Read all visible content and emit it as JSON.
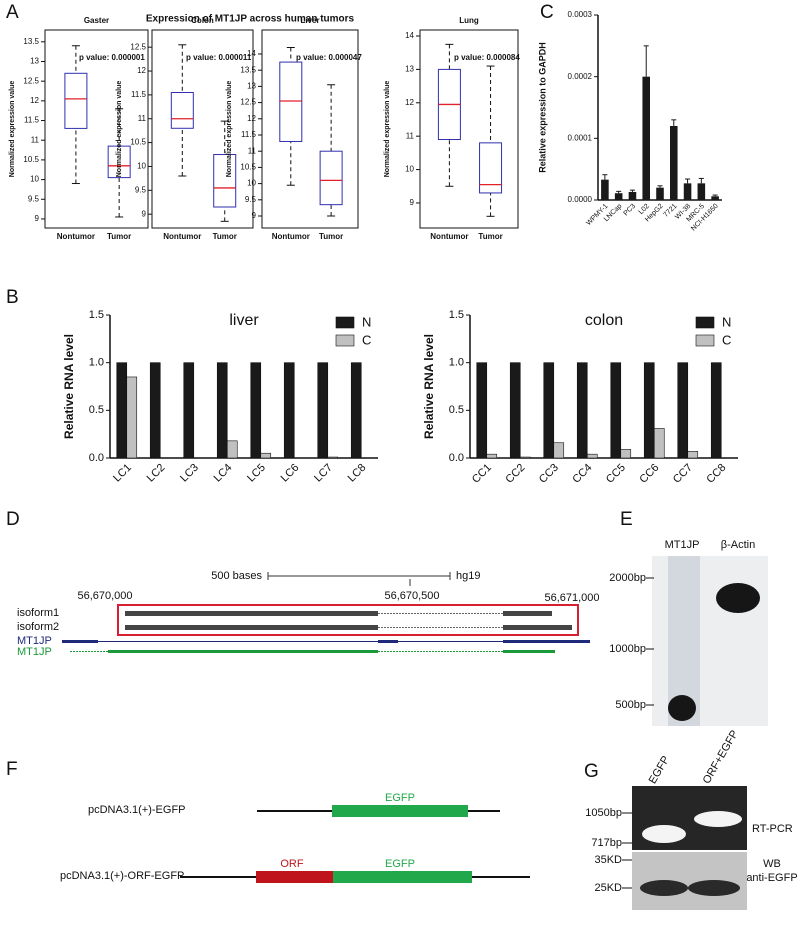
{
  "panel_labels": [
    "A",
    "B",
    "C",
    "D",
    "E",
    "F",
    "G"
  ],
  "panel_a": {
    "title": "Expression of MT1JP across human tumors"
  },
  "chart_data": [
    {
      "type": "box",
      "title": "Gaster",
      "annotation": "p value: 0.000001",
      "ylabel": "Normalized expression value",
      "categories": [
        "Nontumor",
        "Tumor"
      ],
      "color": "#2f2fb0",
      "median_color": "#e0202a",
      "boxes": [
        {
          "min": 9.9,
          "q1": 11.3,
          "median": 12.05,
          "q3": 12.7,
          "max": 13.4
        },
        {
          "min": 9.05,
          "q1": 10.05,
          "median": 10.35,
          "q3": 10.85,
          "max": 11.8
        }
      ],
      "ylim": [
        8.77,
        13.8
      ],
      "yticks": [
        9,
        9.5,
        10,
        10.5,
        11,
        11.5,
        12,
        12.5,
        13,
        13.5
      ]
    },
    {
      "type": "box",
      "title": "Colon",
      "annotation": "p value: 0.000011",
      "ylabel": "Normalized expression value",
      "categories": [
        "Nontumor",
        "Tumor"
      ],
      "color": "#2f2fb0",
      "median_color": "#e0202a",
      "boxes": [
        {
          "min": 9.8,
          "q1": 10.8,
          "median": 11.0,
          "q3": 11.55,
          "max": 12.55
        },
        {
          "min": 8.85,
          "q1": 9.15,
          "median": 9.55,
          "q3": 10.25,
          "max": 10.95
        }
      ],
      "ylim": [
        8.71,
        12.86
      ],
      "yticks": [
        9,
        9.5,
        10,
        10.5,
        11,
        11.5,
        12,
        12.5
      ]
    },
    {
      "type": "box",
      "title": "Liver",
      "annotation": "p value: 0.000047",
      "ylabel": "Normalized expression value",
      "categories": [
        "Nontumor",
        "Tumor"
      ],
      "color": "#2f2fb0",
      "median_color": "#e0202a",
      "boxes": [
        {
          "min": 9.95,
          "q1": 11.3,
          "median": 12.55,
          "q3": 13.75,
          "max": 14.2
        },
        {
          "min": 9.0,
          "q1": 9.35,
          "median": 10.1,
          "q3": 11.0,
          "max": 13.05
        }
      ],
      "ylim": [
        8.63,
        14.74
      ],
      "yticks": [
        9,
        9.5,
        10,
        10.5,
        11,
        11.5,
        12,
        12.5,
        13,
        13.5,
        14
      ]
    },
    {
      "type": "box",
      "title": "Lung",
      "annotation": "p value: 0.000084",
      "ylabel": "Normalized expression value",
      "categories": [
        "Nontumor",
        "Tumor"
      ],
      "color": "#2f2fb0",
      "median_color": "#e0202a",
      "boxes": [
        {
          "min": 9.5,
          "q1": 10.9,
          "median": 11.95,
          "q3": 13.0,
          "max": 13.75
        },
        {
          "min": 8.6,
          "q1": 9.3,
          "median": 9.55,
          "q3": 10.8,
          "max": 13.1
        }
      ],
      "ylim": [
        8.25,
        14.18
      ],
      "yticks": [
        9,
        10,
        11,
        12,
        13,
        14
      ]
    },
    {
      "type": "bar",
      "ylabel": "Relative expression to GAPDH",
      "categories": [
        "WPMY-1",
        "LNCap",
        "PC3",
        "L02",
        "HepG2",
        "7721",
        "WI-38",
        "MRC-5",
        "NCI-H1650"
      ],
      "values": [
        3.3e-05,
        1.1e-05,
        1.3e-05,
        0.0002,
        2e-05,
        0.00012,
        2.7e-05,
        2.7e-05,
        6e-06
      ],
      "errors": [
        8e-06,
        3e-06,
        3e-06,
        5e-05,
        3e-06,
        1e-05,
        7e-06,
        8e-06,
        2e-06
      ],
      "color": "#1a1a1a",
      "ylim": [
        0,
        0.0003
      ],
      "yticks": [
        {
          "value": 0,
          "label": "0.0000"
        },
        0.0001,
        0.0002,
        0.0003
      ]
    },
    {
      "type": "bar",
      "title": "liver",
      "ylabel": "Relative RNA  level",
      "categories": [
        "LC1",
        "LC2",
        "LC3",
        "LC4",
        "LC5",
        "LC6",
        "LC7",
        "LC8"
      ],
      "series": [
        {
          "name": "N",
          "color": "#1a1a1a",
          "values": [
            1,
            1,
            1,
            1,
            1,
            1,
            1,
            1
          ]
        },
        {
          "name": "C",
          "color": "#c0c0c0",
          "values": [
            0.85,
            0,
            0,
            0.18,
            0.05,
            0,
            0.01,
            0
          ]
        }
      ],
      "legend": "upper right",
      "ylim": [
        0,
        1.5
      ],
      "yticks": [
        {
          "value": 0,
          "label": "0.0"
        },
        0.5,
        {
          "value": 1,
          "label": "1.0"
        },
        1.5
      ]
    },
    {
      "type": "bar",
      "title": "colon",
      "ylabel": "Relative RNA  level",
      "categories": [
        "CC1",
        "CC2",
        "CC3",
        "CC4",
        "CC5",
        "CC6",
        "CC7",
        "CC8"
      ],
      "series": [
        {
          "name": "N",
          "color": "#1a1a1a",
          "values": [
            1,
            1,
            1,
            1,
            1,
            1,
            1,
            1
          ]
        },
        {
          "name": "C",
          "color": "#c0c0c0",
          "values": [
            0.04,
            0.01,
            0.16,
            0.04,
            0.09,
            0.31,
            0.07,
            0
          ]
        }
      ],
      "legend": "upper right",
      "ylim": [
        0,
        1.5
      ],
      "yticks": [
        {
          "value": 0,
          "label": "0.0"
        },
        0.5,
        {
          "value": 1,
          "label": "1.0"
        },
        1.5
      ]
    }
  ],
  "genome_browser": {
    "scale_label": "500 bases",
    "assembly": "hg19",
    "positions": [
      "56,670,000",
      "56,670,500",
      "56,671,000"
    ],
    "tracks": [
      "isoform1",
      "isoform2",
      "MT1JP",
      "MT1JP"
    ]
  },
  "blot_e": {
    "lanes": [
      "MT1JP",
      "β-Actin"
    ],
    "markers": [
      "2000bp",
      "1000bp",
      "500bp"
    ]
  },
  "constructs": [
    {
      "name": "pcDNA3.1(+)-EGFP",
      "elements": [
        "EGFP"
      ]
    },
    {
      "name": "pcDNA3.1(+)-ORF-EGFP",
      "elements": [
        "ORF",
        "EGFP"
      ]
    }
  ],
  "blot_g": {
    "lanes": [
      "EGFP",
      "ORF+EGFP"
    ],
    "pcr_markers": [
      "1050bp",
      "717bp"
    ],
    "pcr_label": "RT-PCR",
    "wb_markers": [
      "35KD",
      "25KD"
    ],
    "wb_label": [
      "WB",
      "anti-EGFP"
    ]
  }
}
